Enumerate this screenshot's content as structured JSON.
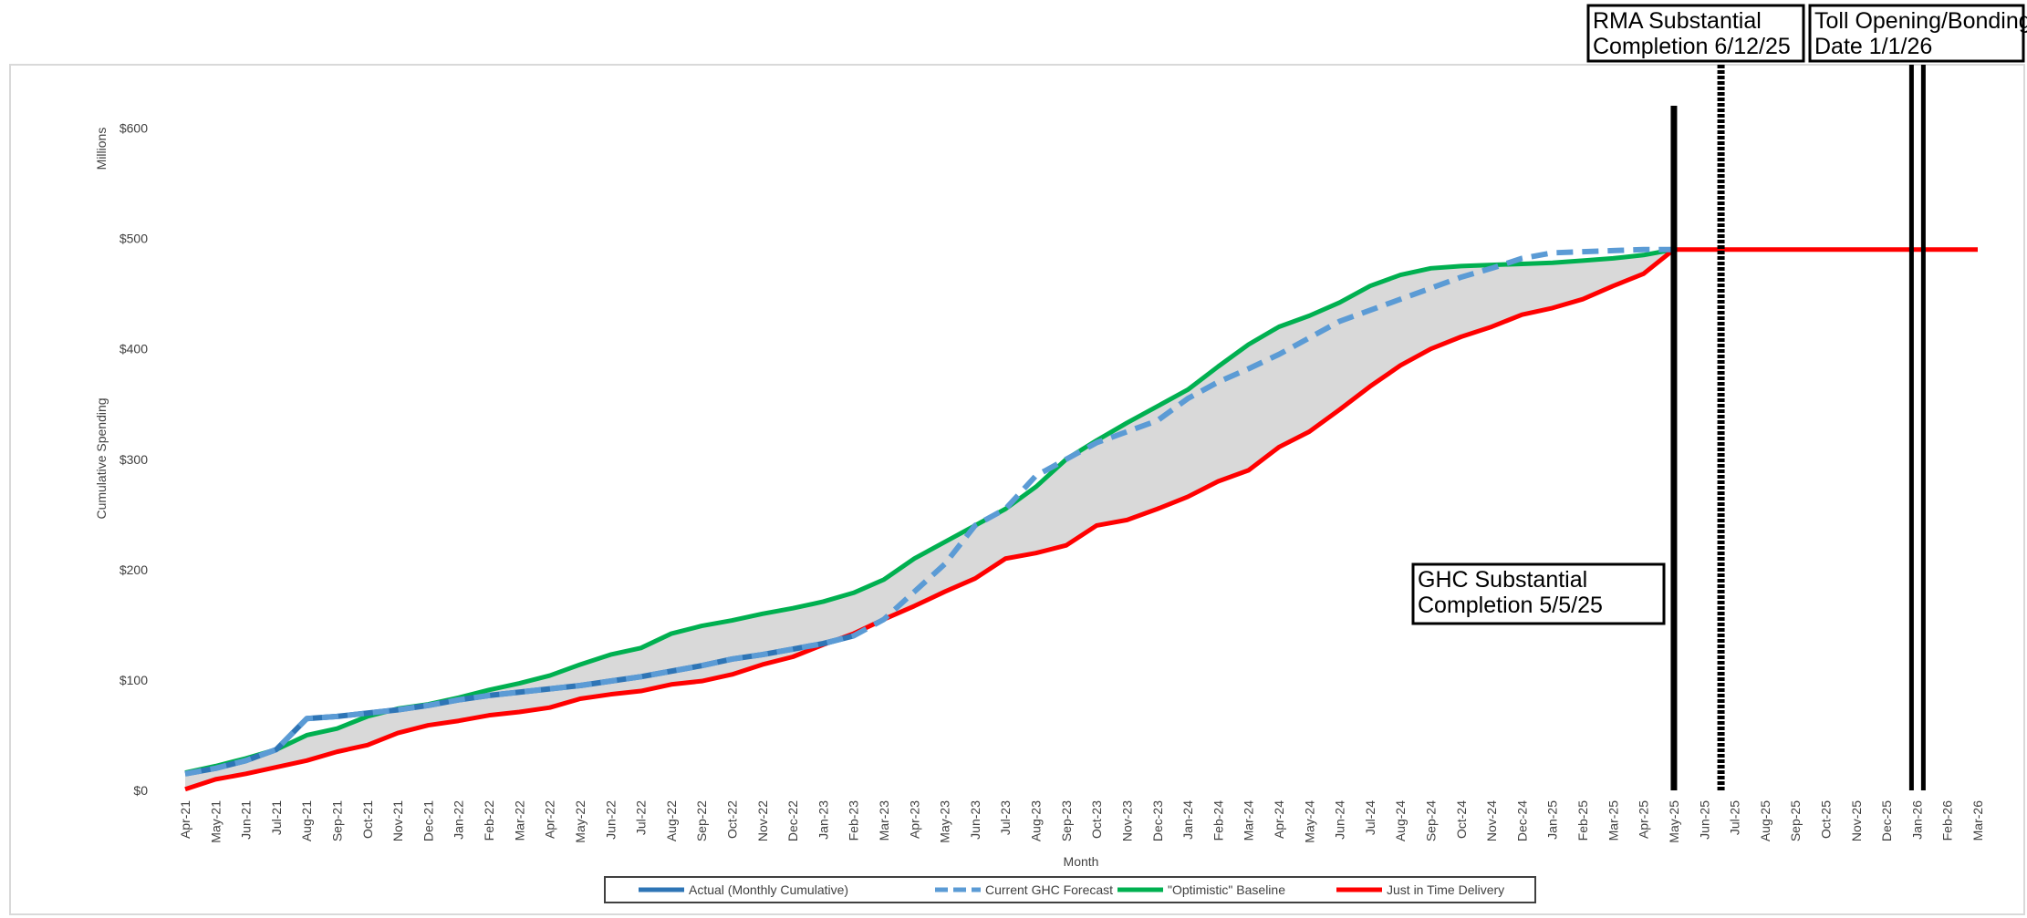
{
  "chart_data": {
    "type": "line",
    "y_axis_label": "Cumulative Spending",
    "y_unit_label": "Millions",
    "x_axis_label": "Month",
    "categories": [
      "Apr-21",
      "May-21",
      "Jun-21",
      "Jul-21",
      "Aug-21",
      "Sep-21",
      "Oct-21",
      "Nov-21",
      "Dec-21",
      "Jan-22",
      "Feb-22",
      "Mar-22",
      "Apr-22",
      "May-22",
      "Jun-22",
      "Jul-22",
      "Aug-22",
      "Sep-22",
      "Oct-22",
      "Nov-22",
      "Dec-22",
      "Jan-23",
      "Feb-23",
      "Mar-23",
      "Apr-23",
      "May-23",
      "Jun-23",
      "Jul-23",
      "Aug-23",
      "Sep-23",
      "Oct-23",
      "Nov-23",
      "Dec-23",
      "Jan-24",
      "Feb-24",
      "Mar-24",
      "Apr-24",
      "May-24",
      "Jun-24",
      "Jul-24",
      "Aug-24",
      "Sep-24",
      "Oct-24",
      "Nov-24",
      "Dec-24",
      "Jan-25",
      "Feb-25",
      "Mar-25",
      "Apr-25",
      "May-25",
      "Jun-25",
      "Jul-25",
      "Aug-25",
      "Sep-25",
      "Oct-25",
      "Nov-25",
      "Dec-25",
      "Jan-26",
      "Feb-26",
      "Mar-26"
    ],
    "ylim": [
      0,
      650
    ],
    "yticks": [
      {
        "value": 0,
        "label": "$0"
      },
      {
        "value": 100,
        "label": "$100"
      },
      {
        "value": 200,
        "label": "$200"
      },
      {
        "value": 300,
        "label": "$300"
      },
      {
        "value": 400,
        "label": "$400"
      },
      {
        "value": 500,
        "label": "$500"
      },
      {
        "value": 600,
        "label": "$600"
      }
    ],
    "band_fill": "#d9d9d9",
    "series": [
      {
        "name": "Actual (Monthly Cumulative)",
        "color": "#2e75b6",
        "dashed": false,
        "values": [
          15,
          20,
          27,
          37,
          65,
          67,
          70,
          73,
          77,
          82,
          86,
          89,
          92,
          95,
          99,
          103,
          108,
          113,
          119,
          123,
          128,
          133,
          140,
          null,
          null,
          null,
          null,
          null,
          null,
          null,
          null,
          null,
          null,
          null,
          null,
          null,
          null,
          null,
          null,
          null,
          null,
          null,
          null,
          null,
          null,
          null,
          null,
          null,
          null,
          null,
          null,
          null,
          null,
          null,
          null,
          null,
          null,
          null,
          null,
          null
        ]
      },
      {
        "name": "Current GHC Forecast",
        "color": "#5b9bd5",
        "dashed": true,
        "values": [
          15,
          20,
          27,
          37,
          65,
          67,
          70,
          73,
          77,
          82,
          86,
          89,
          92,
          95,
          99,
          103,
          108,
          113,
          119,
          123,
          128,
          133,
          140,
          155,
          180,
          205,
          240,
          255,
          285,
          300,
          315,
          325,
          335,
          355,
          370,
          382,
          395,
          410,
          425,
          435,
          445,
          455,
          465,
          473,
          482,
          487,
          488,
          489,
          490,
          490,
          null,
          null,
          null,
          null,
          null,
          null,
          null,
          null,
          null,
          null
        ]
      },
      {
        "name": "\"Optimistic\" Baseline",
        "color": "#00b050",
        "dashed": false,
        "values": [
          16,
          22,
          29,
          37,
          50,
          56,
          67,
          74,
          78,
          84,
          91,
          97,
          104,
          114,
          123,
          129,
          142,
          149,
          154,
          160,
          165,
          171,
          179,
          191,
          210,
          225,
          240,
          255,
          275,
          300,
          317,
          333,
          348,
          363,
          384,
          404,
          420,
          430,
          442,
          457,
          467,
          473,
          475,
          476,
          477,
          478,
          480,
          482,
          485,
          490,
          null,
          null,
          null,
          null,
          null,
          null,
          null,
          null,
          null,
          null
        ]
      },
      {
        "name": "Just in Time Delivery",
        "color": "#ff0000",
        "dashed": false,
        "values": [
          1,
          10,
          15,
          21,
          27,
          35,
          41,
          52,
          59,
          63,
          68,
          71,
          75,
          83,
          87,
          90,
          96,
          99,
          105,
          114,
          121,
          132,
          142,
          155,
          167,
          180,
          192,
          210,
          215,
          222,
          240,
          245,
          255,
          266,
          280,
          290,
          311,
          325,
          345,
          366,
          385,
          400,
          411,
          420,
          431,
          437,
          445,
          457,
          468,
          490,
          490,
          490,
          490,
          490,
          490,
          490,
          490,
          490,
          490,
          490
        ]
      }
    ],
    "annotations": [
      {
        "text": [
          "GHC Substantial",
          "Completion 5/5/25"
        ],
        "at": "May-25",
        "line": "solid"
      },
      {
        "text": [
          "RMA Substantial",
          "Completion 6/12/25"
        ],
        "at": "Jun-25",
        "line": "dashed"
      },
      {
        "text": [
          "Toll Opening/Bonding",
          "Date 1/1/26"
        ],
        "at": "Jan-26",
        "line": "double"
      }
    ]
  }
}
